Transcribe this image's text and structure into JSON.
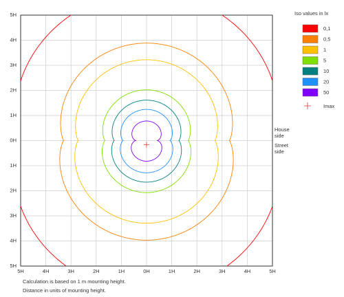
{
  "chart_data": {
    "type": "contour",
    "xlim": [
      -5,
      5
    ],
    "ylim": [
      -5,
      5
    ],
    "xticks": [
      {
        "value": -5,
        "label": "5H"
      },
      {
        "value": -4,
        "label": "4H"
      },
      {
        "value": -3,
        "label": "3H"
      },
      {
        "value": -2,
        "label": "2H"
      },
      {
        "value": -1,
        "label": "1H"
      },
      {
        "value": 0,
        "label": "0H"
      },
      {
        "value": 1,
        "label": "1H"
      },
      {
        "value": 2,
        "label": "2H"
      },
      {
        "value": 3,
        "label": "3H"
      },
      {
        "value": 4,
        "label": "4H"
      },
      {
        "value": 5,
        "label": "5H"
      }
    ],
    "yticks": [
      {
        "value": -5,
        "label": "5H"
      },
      {
        "value": -4,
        "label": "4H"
      },
      {
        "value": -3,
        "label": "3H"
      },
      {
        "value": -2,
        "label": "2H"
      },
      {
        "value": -1,
        "label": "1H"
      },
      {
        "value": 0,
        "label": "0H"
      },
      {
        "value": 1,
        "label": "1H"
      },
      {
        "value": 2,
        "label": "2H"
      },
      {
        "value": 3,
        "label": "3H"
      },
      {
        "value": 4,
        "label": "4H"
      },
      {
        "value": 5,
        "label": "5H"
      }
    ],
    "grid": true,
    "legend_title": "Iso values in lx",
    "levels": [
      0.1,
      0.5,
      1,
      5,
      10,
      20,
      50
    ],
    "level_labels": [
      "0,1",
      "0,5",
      "1",
      "5",
      "10",
      "20",
      "50"
    ],
    "level_colors": [
      "#ff0000",
      "#ff8000",
      "#ffc000",
      "#80e000",
      "#008080",
      "#1e90ff",
      "#8000ff"
    ],
    "imax_label": "Imax",
    "imax_color": "#e03030",
    "house_side": "House side",
    "street_side": "Street side",
    "notes": [
      "Calculation is based on 1 m mounting height.",
      "Distance in units of mounting height."
    ]
  }
}
